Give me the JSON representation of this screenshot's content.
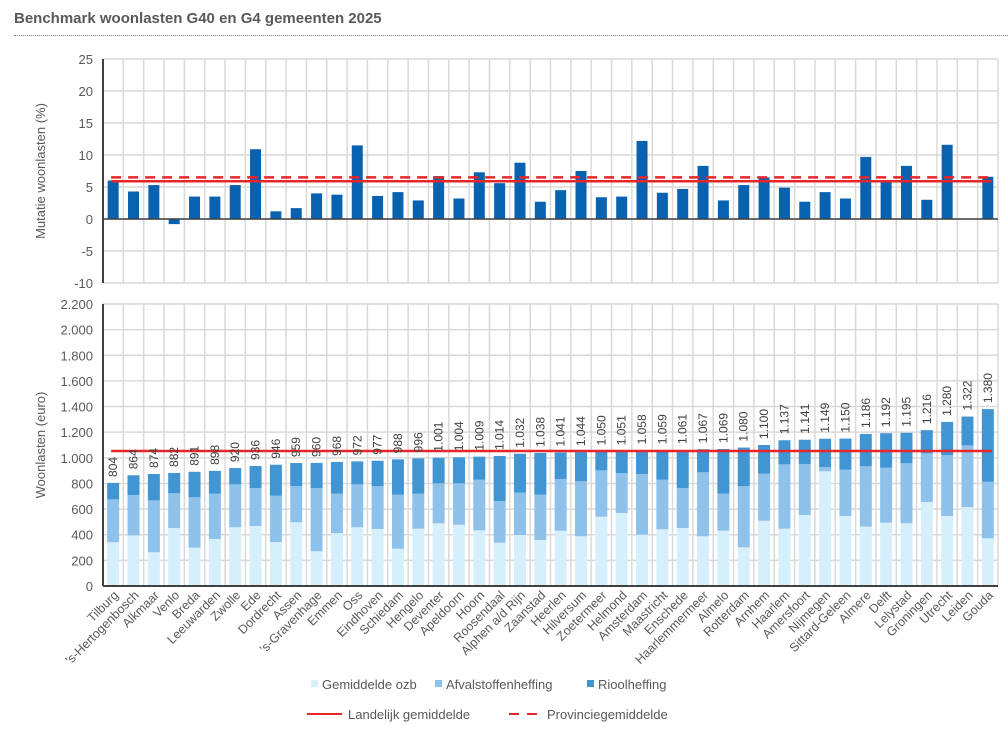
{
  "title": "Benchmark woonlasten G40 en G4 gemeenten 2025",
  "colors": {
    "ozb": "#d6effc",
    "afval": "#8ec2ea",
    "riool": "#4195d3",
    "mutatie": "#0862b0",
    "landelijk": "#e8262a",
    "provincie": "#e8262a",
    "grid": "#d9d9d9",
    "axis": "#404040"
  },
  "chart_data": [
    {
      "type": "bar",
      "title": "",
      "ylabel": "Mutatie woonlasten  (%)",
      "xlabel": "",
      "ylim": [
        -10,
        25
      ],
      "yticks": [
        25,
        20,
        15,
        10,
        5,
        0,
        -5,
        -10
      ],
      "ytick_labels": [
        "25",
        "20",
        "15",
        "10",
        "5",
        "0",
        "-5",
        "-10"
      ],
      "grid": true,
      "categories": [
        "Tilburg",
        "'s-Hertogenbosch",
        "Alkmaar",
        "Venlo",
        "Breda",
        "Leeuwarden",
        "Zwolle",
        "Ede",
        "Dordrecht",
        "Assen",
        "'s-Gravenhage",
        "Emmen",
        "Oss",
        "Eindhoven",
        "Schiedam",
        "Hengelo",
        "Deventer",
        "Apeldoorn",
        "Hoorn",
        "Roosendaal",
        "Alphen a/d Rijn",
        "Zaanstad",
        "Heerlen",
        "Hilversum",
        "Zoetermeer",
        "Helmond",
        "Amsterdam",
        "Maastricht",
        "Enschede",
        "Haarlemmermeer",
        "Almelo",
        "Rotterdam",
        "Arnhem",
        "Haarlem",
        "Amersfoort",
        "Nijmegen",
        "Sittard-Geleen",
        "Almere",
        "Delft",
        "Lelystad",
        "Groningen",
        "Utrecht",
        "Leiden",
        "Gouda"
      ],
      "series": [
        {
          "name": "Mutatie woonlasten",
          "values": [
            6.0,
            4.3,
            5.3,
            -0.8,
            3.5,
            3.5,
            5.3,
            10.9,
            1.2,
            1.7,
            4.0,
            3.8,
            11.5,
            3.6,
            4.2,
            2.9,
            6.7,
            3.2,
            7.3,
            5.6,
            8.8,
            2.7,
            4.5,
            7.5,
            3.4,
            3.5,
            12.2,
            4.1,
            4.7,
            8.3,
            2.9,
            5.3,
            6.5,
            4.9,
            2.7,
            4.2,
            3.2,
            9.7,
            5.9,
            8.3,
            3.0,
            11.6,
            0.0,
            6.6
          ]
        }
      ],
      "reference_lines": [
        {
          "name": "Landelijk gemiddelde",
          "value": 5.9,
          "style": "solid"
        },
        {
          "name": "Provinciegemiddelde",
          "value": 6.5,
          "style": "dashed"
        }
      ]
    },
    {
      "type": "bar",
      "stacked": true,
      "title": "",
      "ylabel": "Woonlasten  (euro)",
      "xlabel": "",
      "ylim": [
        0,
        2200
      ],
      "yticks": [
        2200,
        2000,
        1800,
        1600,
        1400,
        1200,
        1000,
        800,
        600,
        400,
        200,
        0
      ],
      "ytick_labels": [
        "2.200",
        "2.000",
        "1.800",
        "1.600",
        "1.400",
        "1.200",
        "1.000",
        "800",
        "600",
        "400",
        "200",
        "0"
      ],
      "grid": true,
      "categories": [
        "Tilburg",
        "'s-Hertogenbosch",
        "Alkmaar",
        "Venlo",
        "Breda",
        "Leeuwarden",
        "Zwolle",
        "Ede",
        "Dordrecht",
        "Assen",
        "'s-Gravenhage",
        "Emmen",
        "Oss",
        "Eindhoven",
        "Schiedam",
        "Hengelo",
        "Deventer",
        "Apeldoorn",
        "Hoorn",
        "Roosendaal",
        "Alphen a/d Rijn",
        "Zaanstad",
        "Heerlen",
        "Hilversum",
        "Zoetermeer",
        "Helmond",
        "Amsterdam",
        "Maastricht",
        "Enschede",
        "Haarlemmermeer",
        "Almelo",
        "Rotterdam",
        "Arnhem",
        "Haarlem",
        "Amersfoort",
        "Nijmegen",
        "Sittard-Geleen",
        "Almere",
        "Delft",
        "Lelystad",
        "Groningen",
        "Utrecht",
        "Leiden",
        "Gouda"
      ],
      "series": [
        {
          "name": "Gemiddelde ozb",
          "values": [
            341,
            395,
            263,
            452,
            299,
            367,
            458,
            468,
            343,
            497,
            271,
            413,
            458,
            445,
            291,
            447,
            489,
            478,
            434,
            338,
            398,
            359,
            431,
            388,
            541,
            569,
            400,
            442,
            452,
            388,
            431,
            302,
            509,
            447,
            554,
            895,
            546,
            463,
            494,
            489,
            655,
            546,
            616,
            372
          ]
        },
        {
          "name": "Afvalstoffenheffing",
          "values": [
            335,
            315,
            405,
            271,
            393,
            353,
            335,
            296,
            361,
            283,
            493,
            307,
            335,
            333,
            421,
            273,
            312,
            323,
            395,
            325,
            330,
            353,
            404,
            429,
            361,
            312,
            474,
            387,
            312,
            499,
            289,
            476,
            367,
            502,
            398,
            33,
            361,
            471,
            429,
            468,
            380,
            476,
            481,
            441
          ]
        },
        {
          "name": "Rioolheffing",
          "values": [
            128,
            154,
            206,
            159,
            199,
            178,
            127,
            172,
            242,
            179,
            196,
            248,
            179,
            199,
            276,
            276,
            200,
            203,
            180,
            351,
            304,
            326,
            206,
            227,
            148,
            170,
            184,
            230,
            297,
            180,
            349,
            302,
            224,
            188,
            189,
            221,
            243,
            252,
            269,
            238,
            181,
            258,
            225,
            567
          ]
        }
      ],
      "totals": [
        804,
        864,
        874,
        882,
        891,
        898,
        920,
        936,
        946,
        959,
        960,
        968,
        972,
        977,
        988,
        996,
        1001,
        1004,
        1009,
        1014,
        1032,
        1038,
        1041,
        1044,
        1050,
        1051,
        1058,
        1059,
        1061,
        1067,
        1069,
        1080,
        1100,
        1137,
        1141,
        1149,
        1150,
        1186,
        1192,
        1195,
        1216,
        1280,
        1322,
        1380
      ],
      "total_labels": [
        "804",
        "864",
        "874",
        "882",
        "891",
        "898",
        "920",
        "936",
        "946",
        "959",
        "960",
        "968",
        "972",
        "977",
        "988",
        "996",
        "1.001",
        "1.004",
        "1.009",
        "1.014",
        "1.032",
        "1.038",
        "1.041",
        "1.044",
        "1.050",
        "1.051",
        "1.058",
        "1.059",
        "1.061",
        "1.067",
        "1.069",
        "1.080",
        "1.100",
        "1.137",
        "1.141",
        "1.149",
        "1.150",
        "1.186",
        "1.192",
        "1.195",
        "1.216",
        "1.280",
        "1.322",
        "1.380"
      ],
      "reference_lines": [
        {
          "name": "Landelijk gemiddelde",
          "value": 1053,
          "style": "solid"
        }
      ]
    }
  ],
  "legend": {
    "placement": "bottom-center",
    "items": [
      {
        "label": "Gemiddelde ozb",
        "kind": "square",
        "color_key": "ozb"
      },
      {
        "label": "Afvalstoffenheffing",
        "kind": "square",
        "color_key": "afval"
      },
      {
        "label": "Rioolheffing",
        "kind": "square",
        "color_key": "riool"
      },
      {
        "label": "Landelijk gemiddelde",
        "kind": "solid-line",
        "color_key": "landelijk"
      },
      {
        "label": "Provinciegemiddelde",
        "kind": "dashed-line",
        "color_key": "provincie"
      }
    ]
  }
}
